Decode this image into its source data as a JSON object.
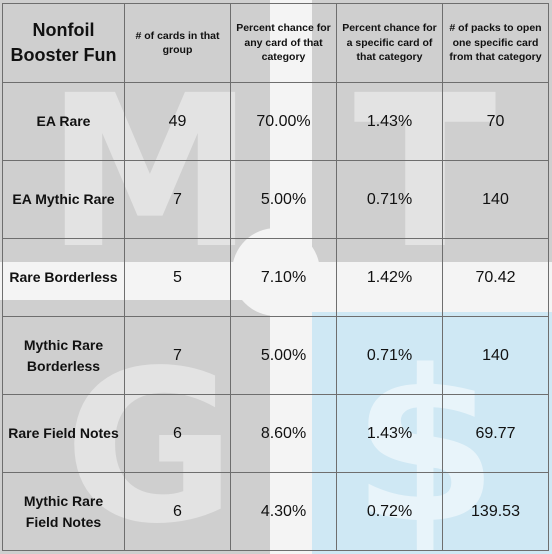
{
  "table": {
    "corner_label": "Nonfoil Booster Fun",
    "columns": [
      "# of cards in that group",
      "Percent chance for any card of that category",
      "Percent chance for a specific card of that category",
      "# of packs to open one specific card from that category"
    ],
    "rows": [
      {
        "label": "EA Rare",
        "cards": "49",
        "any": "70.00%",
        "specific": "1.43%",
        "packs": "70"
      },
      {
        "label": "EA Mythic Rare",
        "cards": "7",
        "any": "5.00%",
        "specific": "0.71%",
        "packs": "140"
      },
      {
        "label": "Rare Borderless",
        "cards": "5",
        "any": "7.10%",
        "specific": "1.42%",
        "packs": "70.42"
      },
      {
        "label": "Mythic Rare Borderless",
        "cards": "7",
        "any": "5.00%",
        "specific": "0.71%",
        "packs": "140"
      },
      {
        "label": "Rare Field Notes",
        "cards": "6",
        "any": "8.60%",
        "specific": "1.43%",
        "packs": "69.77"
      },
      {
        "label": "Mythic Rare Field Notes",
        "cards": "6",
        "any": "4.30%",
        "specific": "0.72%",
        "packs": "139.53"
      }
    ]
  },
  "watermark": {
    "letters": [
      "M",
      "T",
      "G",
      "$"
    ],
    "gray_color": "#cfcfcf",
    "blue_color": "#cfe8f4"
  }
}
